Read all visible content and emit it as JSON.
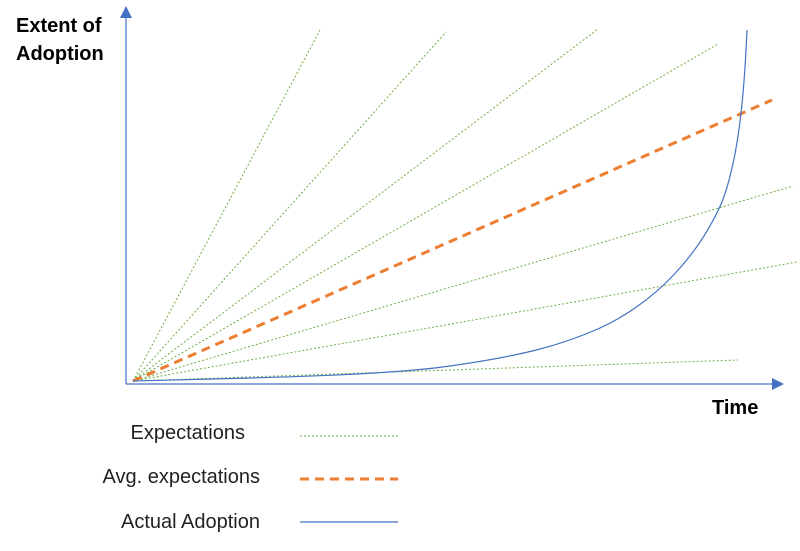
{
  "axes": {
    "y_label": "Extent of\nAdoption",
    "x_label": "Time"
  },
  "legend": {
    "items": [
      {
        "label": "Expectations",
        "style": "dotted",
        "color": "#70ad47"
      },
      {
        "label": "Avg. expectations",
        "style": "dashed",
        "color": "#ed7d31"
      },
      {
        "label": "Actual Adoption",
        "style": "solid",
        "color": "#4472c4"
      }
    ]
  },
  "colors": {
    "axis": "#4472c4",
    "expectations": "#70ad47",
    "avg_expectations": "#ed7d31",
    "actual_adoption": "#4472c4"
  }
}
